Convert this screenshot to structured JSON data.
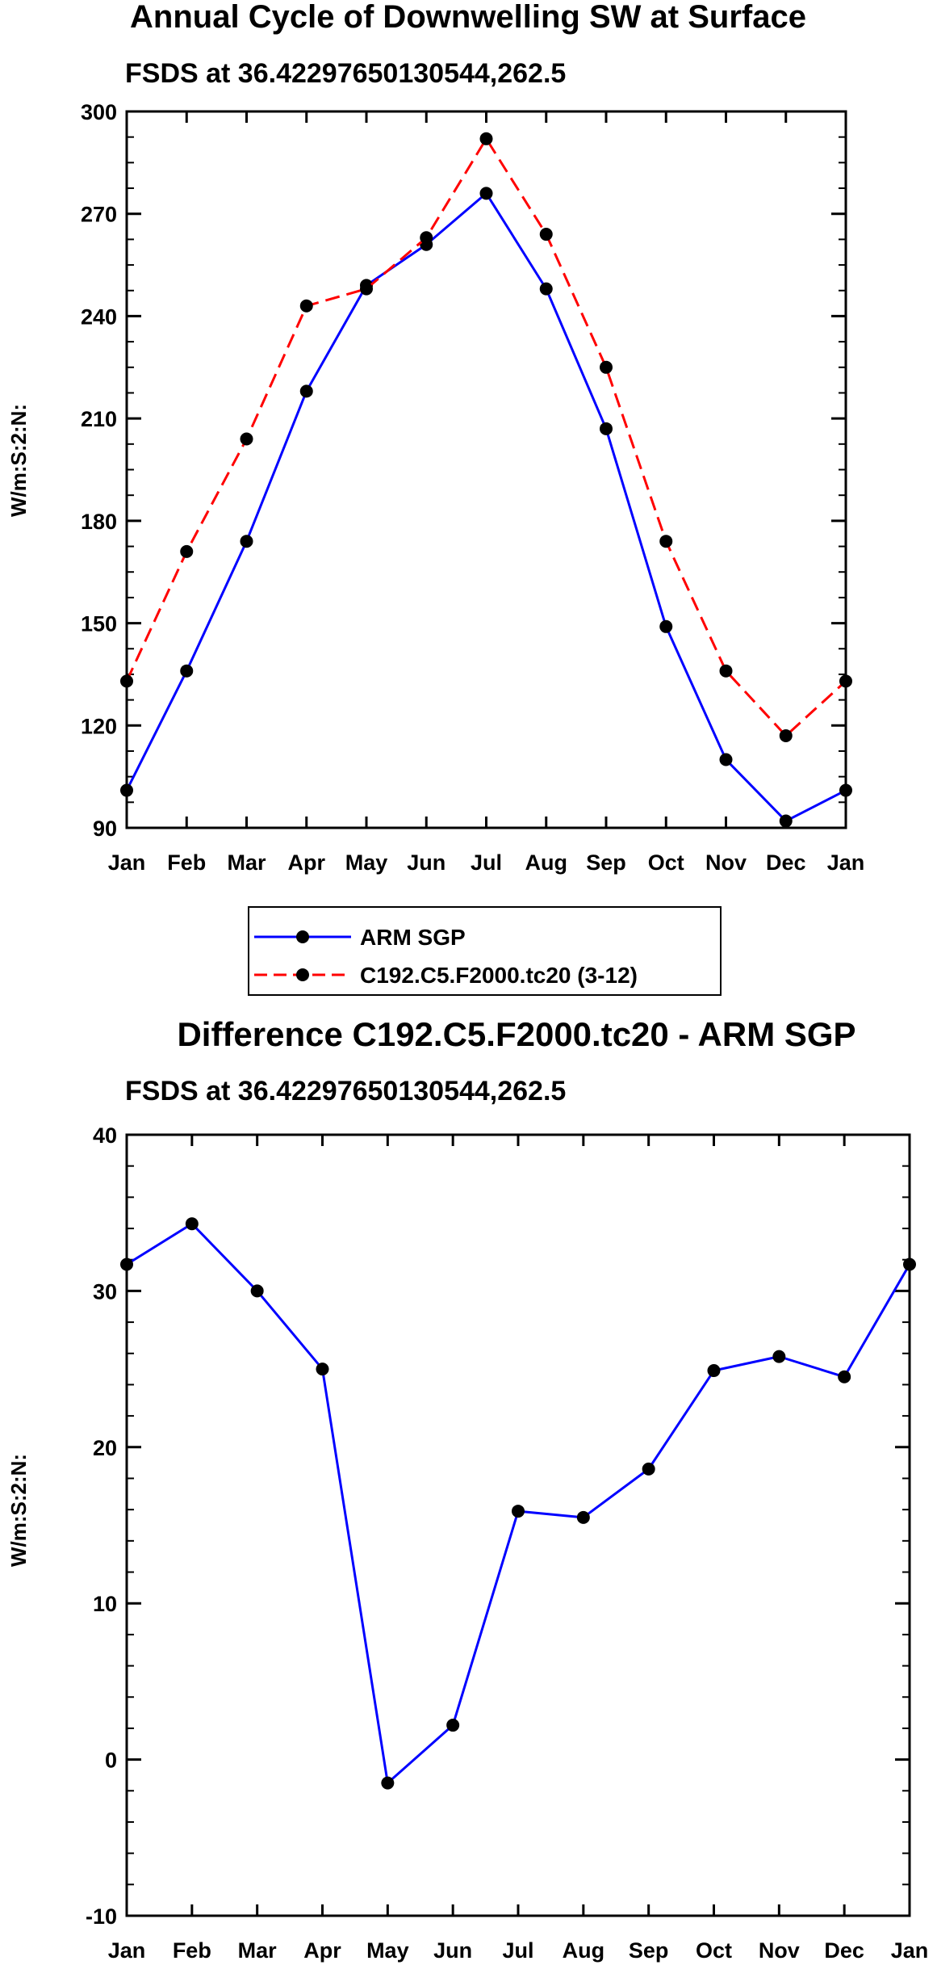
{
  "chart_data": [
    {
      "type": "line",
      "title": "Annual Cycle of Downwelling SW at Surface",
      "subtitle": "FSDS at 36.42297650130544,262.5",
      "xlabel": "",
      "ylabel": "W/m:S:2:N:",
      "categories": [
        "Jan",
        "Feb",
        "Mar",
        "Apr",
        "May",
        "Jun",
        "Jul",
        "Aug",
        "Sep",
        "Oct",
        "Nov",
        "Dec",
        "Jan"
      ],
      "ylim": [
        90,
        300
      ],
      "yticks": [
        "90",
        "120",
        "150",
        "180",
        "210",
        "240",
        "270",
        "300"
      ],
      "series": [
        {
          "name": "ARM SGP",
          "color": "#0000ff",
          "dash": "solid",
          "values": [
            101,
            136,
            174,
            218,
            249,
            261,
            276,
            248,
            207,
            149,
            110,
            92,
            101
          ]
        },
        {
          "name": "C192.C5.F2000.tc20 (3-12)",
          "color": "#ff0000",
          "dash": "dashed",
          "values": [
            133,
            171,
            204,
            243,
            248,
            263,
            292,
            264,
            225,
            174,
            136,
            117,
            133
          ]
        }
      ],
      "legend": [
        "ARM SGP",
        "C192.C5.F2000.tc20 (3-12)"
      ]
    },
    {
      "type": "line",
      "title": "Difference C192.C5.F2000.tc20 - ARM SGP",
      "subtitle": "FSDS at 36.42297650130544,262.5",
      "xlabel": "",
      "ylabel": "W/m:S:2:N:",
      "categories": [
        "Jan",
        "Feb",
        "Mar",
        "Apr",
        "May",
        "Jun",
        "Jul",
        "Aug",
        "Sep",
        "Oct",
        "Nov",
        "Dec",
        "Jan"
      ],
      "ylim": [
        -10,
        40
      ],
      "yticks": [
        "-10",
        "0",
        "10",
        "20",
        "30",
        "40"
      ],
      "series": [
        {
          "name": "Difference",
          "color": "#0000ff",
          "dash": "solid",
          "values": [
            31.7,
            34.3,
            30.0,
            25.0,
            -1.5,
            2.2,
            15.9,
            15.5,
            18.6,
            24.9,
            25.8,
            24.5,
            31.7
          ]
        }
      ]
    }
  ]
}
